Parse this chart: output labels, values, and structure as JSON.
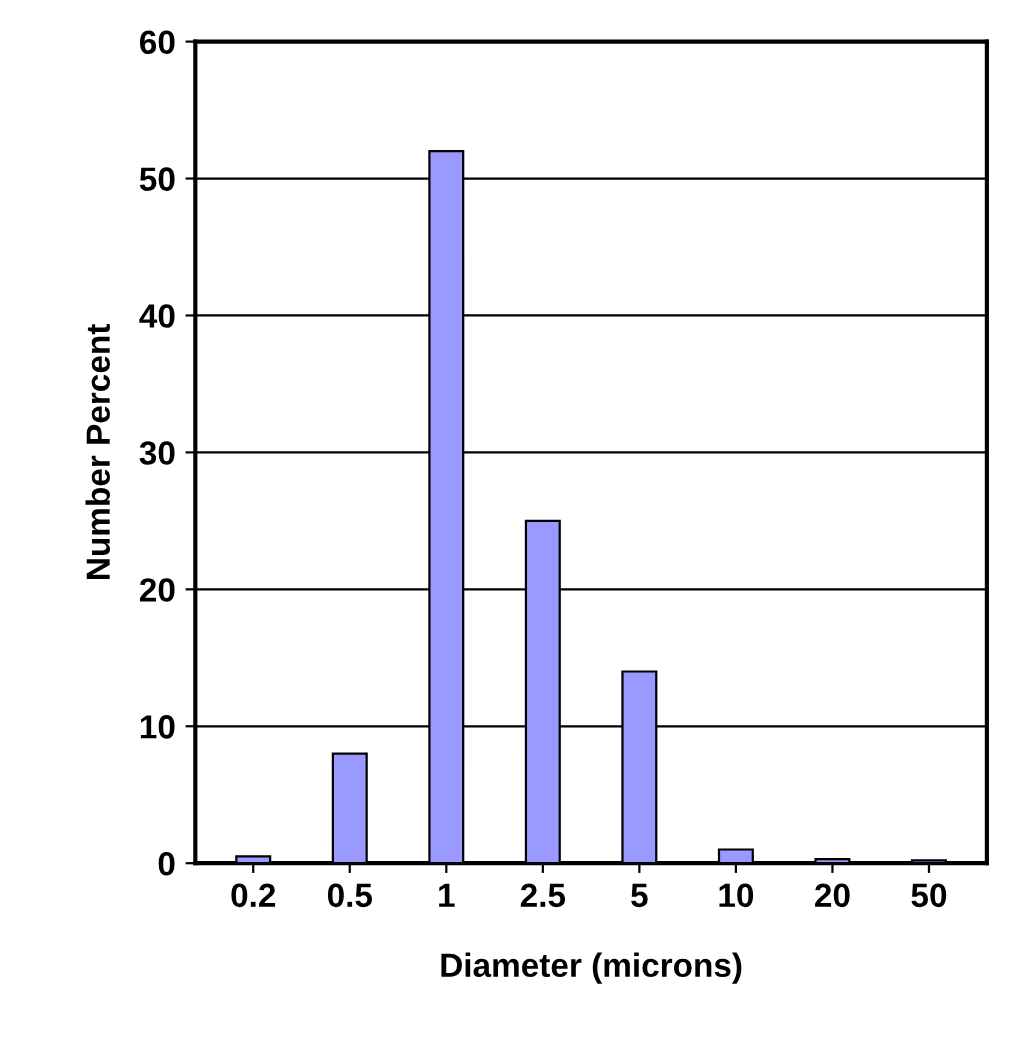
{
  "chart_data": {
    "type": "bar",
    "xlabel": "Diameter (microns)",
    "ylabel": "Number Percent",
    "categories": [
      "0.2",
      "0.5",
      "1",
      "2.5",
      "5",
      "10",
      "20",
      "50"
    ],
    "values": [
      0.5,
      8,
      52,
      25,
      14,
      1,
      0.3,
      0.2
    ],
    "color": "#9999ff",
    "ylim": [
      0,
      60
    ],
    "yticks": [
      0,
      10,
      20,
      30,
      40,
      50,
      60
    ],
    "grid": "y",
    "legend": false
  }
}
